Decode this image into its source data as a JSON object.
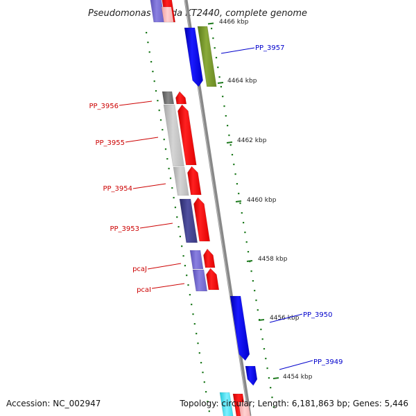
{
  "title": "Pseudomonas putida KT2440, complete genome",
  "footer": {
    "accession": "Accession: NC_002947",
    "topology": "Topology: circular; Length: 6,181,863 bp; Genes: 5,446"
  },
  "colors": {
    "forward_label": "#0000cc",
    "reverse_label": "#cc0000",
    "tick": "#1e7a1e",
    "backbone": "#888888"
  },
  "ticks": [
    {
      "kbp": 4466,
      "label": "4466 kbp"
    },
    {
      "kbp": 4464,
      "label": "4464 kbp"
    },
    {
      "kbp": 4462,
      "label": "4462 kbp"
    },
    {
      "kbp": 4460,
      "label": "4460 kbp"
    },
    {
      "kbp": 4458,
      "label": "4458 kbp"
    },
    {
      "kbp": 4456,
      "label": "4456 kbp"
    },
    {
      "kbp": 4454,
      "label": "4454 kbp"
    }
  ],
  "labels": [
    {
      "name": "PP_3957",
      "strand": "forward"
    },
    {
      "name": "PP_3956",
      "strand": "reverse"
    },
    {
      "name": "PP_3955",
      "strand": "reverse"
    },
    {
      "name": "PP_3954",
      "strand": "reverse"
    },
    {
      "name": "PP_3953",
      "strand": "reverse"
    },
    {
      "name": "pcaJ",
      "strand": "reverse"
    },
    {
      "name": "pcaI",
      "strand": "reverse"
    },
    {
      "name": "PP_3950",
      "strand": "forward"
    },
    {
      "name": "PP_3949",
      "strand": "forward"
    }
  ]
}
